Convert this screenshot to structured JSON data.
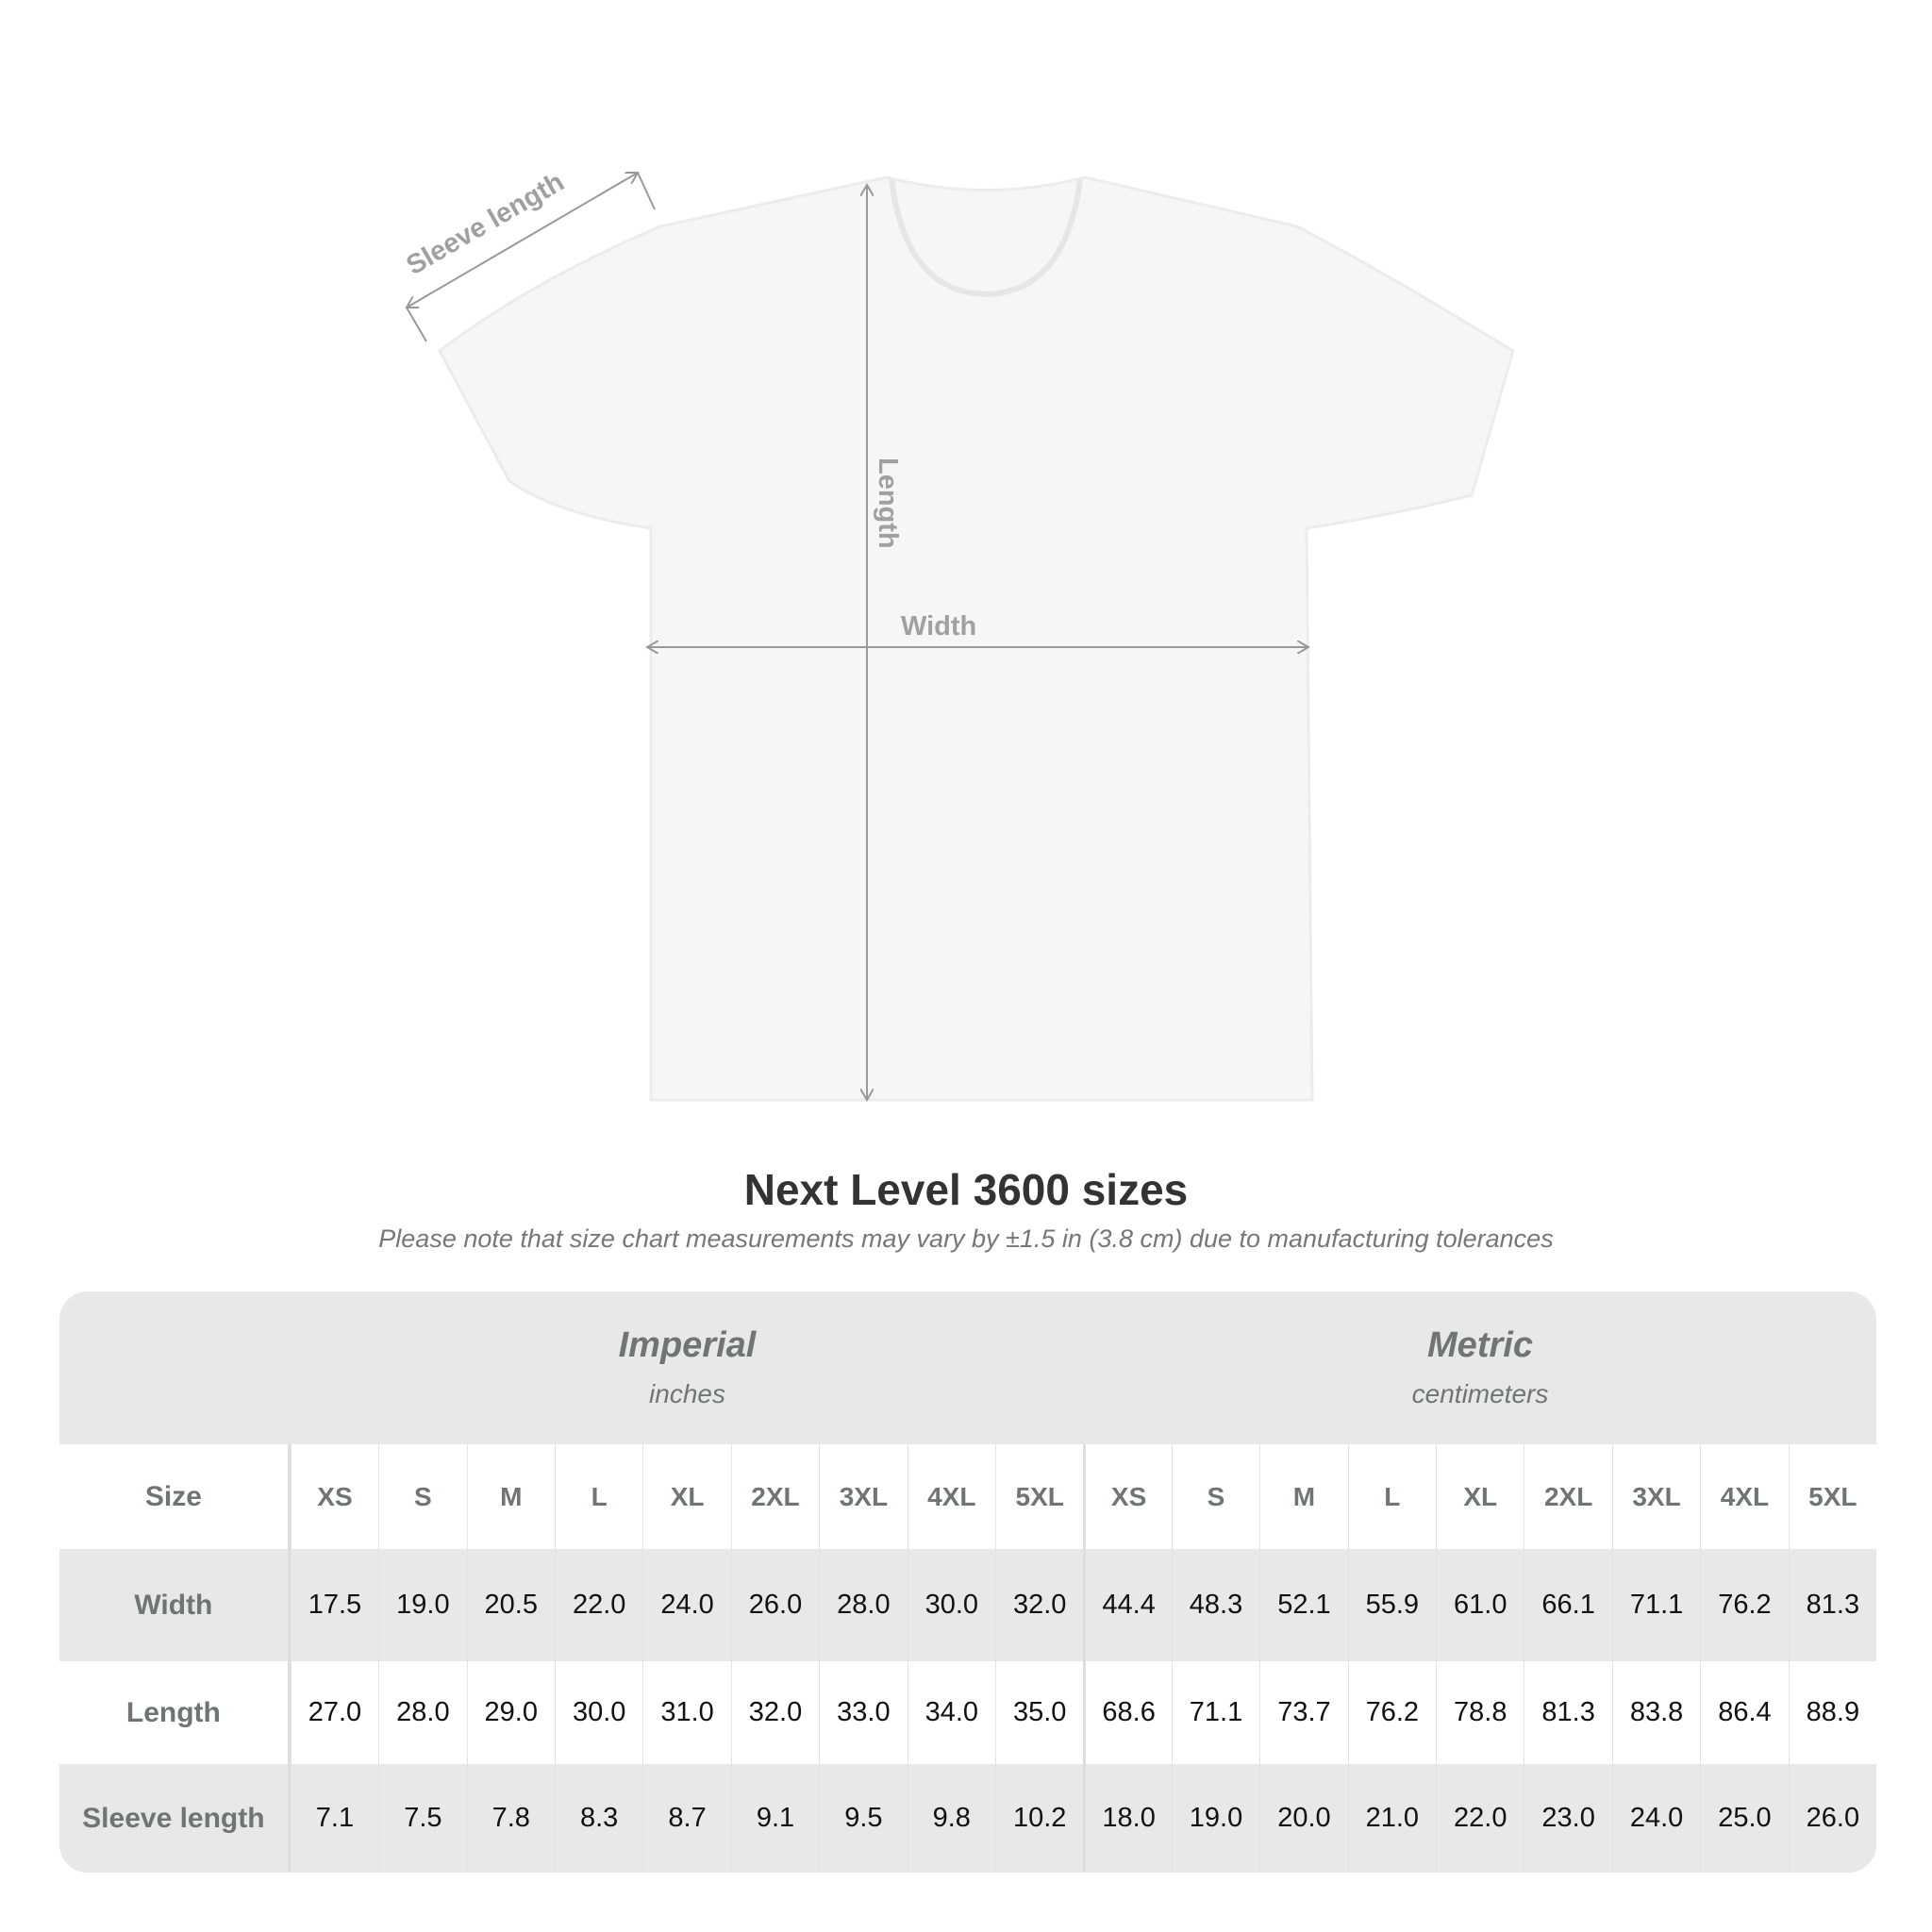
{
  "diagram": {
    "sleeve_label": "Sleeve length",
    "length_label": "Length",
    "width_label": "Width"
  },
  "title": "Next Level 3600 sizes",
  "note": "Please note that size chart measurements may vary by ±1.5 in (3.8 cm) due to manufacturing tolerances",
  "table": {
    "imperial": {
      "label": "Imperial",
      "unit": "inches"
    },
    "metric": {
      "label": "Metric",
      "unit": "centimeters"
    },
    "size_label": "Size",
    "sizes": [
      "XS",
      "S",
      "M",
      "L",
      "XL",
      "2XL",
      "3XL",
      "4XL",
      "5XL"
    ],
    "rows": [
      {
        "label": "Width",
        "imperial": [
          "17.5",
          "19.0",
          "20.5",
          "22.0",
          "24.0",
          "26.0",
          "28.0",
          "30.0",
          "32.0"
        ],
        "metric": [
          "44.4",
          "48.3",
          "52.1",
          "55.9",
          "61.0",
          "66.1",
          "71.1",
          "76.2",
          "81.3"
        ]
      },
      {
        "label": "Length",
        "imperial": [
          "27.0",
          "28.0",
          "29.0",
          "30.0",
          "31.0",
          "32.0",
          "33.0",
          "34.0",
          "35.0"
        ],
        "metric": [
          "68.6",
          "71.1",
          "73.7",
          "76.2",
          "78.8",
          "81.3",
          "83.8",
          "86.4",
          "88.9"
        ]
      },
      {
        "label": "Sleeve length",
        "imperial": [
          "7.1",
          "7.5",
          "7.8",
          "8.3",
          "8.7",
          "9.1",
          "9.5",
          "9.8",
          "10.2"
        ],
        "metric": [
          "18.0",
          "19.0",
          "20.0",
          "21.0",
          "22.0",
          "23.0",
          "24.0",
          "25.0",
          "26.0"
        ]
      }
    ]
  },
  "colors": {
    "header_text": "#6f7575",
    "band": "#e8e8e8",
    "arrow": "#999999"
  }
}
